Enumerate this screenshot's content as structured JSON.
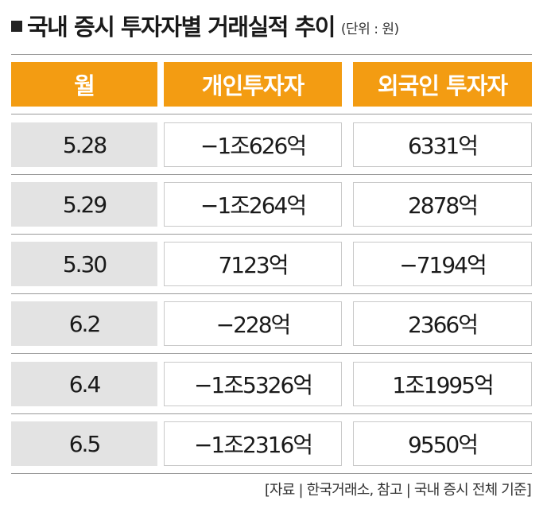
{
  "title": "국내 증시 투자자별 거래실적 추이",
  "unit": "(단위 : 원)",
  "source": "[자료 | 한국거래소, 참고 | 국내 증시 전체 기준]",
  "colors": {
    "header_bg": "#f39c12",
    "header_text": "#ffffff",
    "first_col_bg": "#e3e3e3"
  },
  "chart_data": {
    "type": "table",
    "columns": [
      "월",
      "개인투자자",
      "외국인 투자자"
    ],
    "rows": [
      [
        "5.28",
        "−1조626억",
        "6331억"
      ],
      [
        "5.29",
        "−1조264억",
        "2878억"
      ],
      [
        "5.30",
        "7123억",
        "−7194억"
      ],
      [
        "6.2",
        "−228억",
        "2366억"
      ],
      [
        "6.4",
        "−1조5326억",
        "1조1995억"
      ],
      [
        "6.5",
        "−1조2316억",
        "9550억"
      ]
    ]
  }
}
